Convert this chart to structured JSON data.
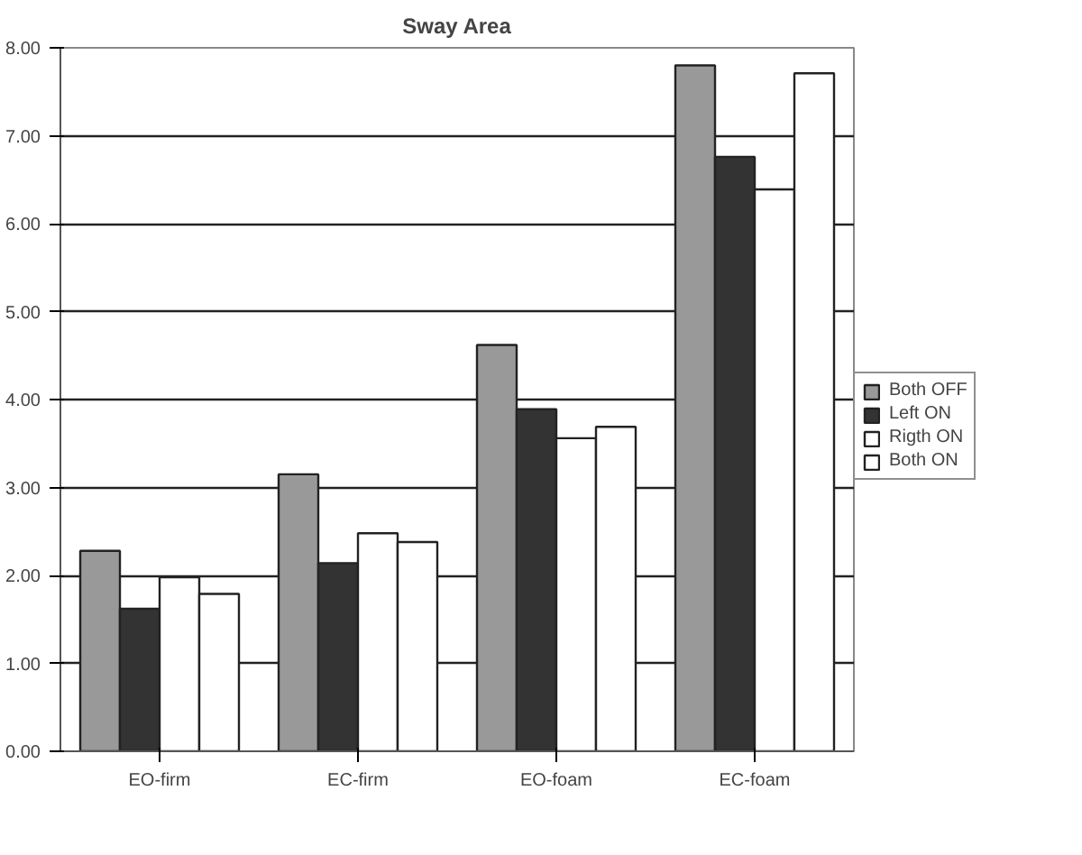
{
  "chart_data": {
    "type": "bar",
    "title": "Sway Area",
    "categories": [
      "EO-firm",
      "EC-firm",
      "EO-foam",
      "EC-foam"
    ],
    "series": [
      {
        "name": "Both OFF",
        "color": "#999999",
        "values": [
          2.28,
          3.15,
          4.62,
          7.8
        ]
      },
      {
        "name": "Left ON",
        "color": "#333333",
        "values": [
          1.62,
          2.14,
          3.89,
          6.76
        ]
      },
      {
        "name": "Rigth ON",
        "color": "#ffffff",
        "values": [
          1.98,
          2.48,
          3.56,
          6.39
        ]
      },
      {
        "name": "Both ON",
        "color": "#ffffff",
        "values": [
          1.79,
          2.38,
          3.69,
          7.71
        ]
      }
    ],
    "ylim": [
      0,
      8
    ],
    "yticks": [
      {
        "value": 0,
        "label": "0.00"
      },
      {
        "value": 1,
        "label": "1.00"
      },
      {
        "value": 2,
        "label": "2.00"
      },
      {
        "value": 3,
        "label": "3.00"
      },
      {
        "value": 4,
        "label": "4.00"
      },
      {
        "value": 5,
        "label": "5.00"
      },
      {
        "value": 6,
        "label": "6.00"
      },
      {
        "value": 7,
        "label": "7.00"
      },
      {
        "value": 8,
        "label": "8.00"
      }
    ],
    "grid": "y",
    "legend": "right"
  }
}
